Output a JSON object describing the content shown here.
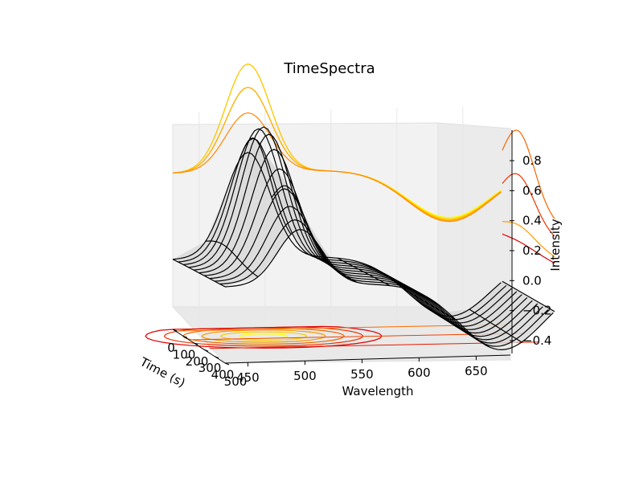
{
  "chart_data": {
    "type": "surface3d",
    "title": "TimeSpectra",
    "xlabel": "Wavelength",
    "ylabel": "Time (s)",
    "zlabel": "Intensity",
    "x_ticks": [
      "450",
      "500",
      "550",
      "600",
      "650"
    ],
    "y_ticks": [
      "0",
      "100",
      "200",
      "300",
      "400",
      "500"
    ],
    "z_ticks": [
      "0.8",
      "0.6",
      "0.4",
      "0.2",
      "0.0",
      "−0.2",
      "−0.4"
    ],
    "xlim": [
      430,
      680
    ],
    "ylim": [
      0,
      500
    ],
    "zlim": [
      -0.45,
      0.95
    ],
    "wavelengths": [
      430,
      455,
      480,
      505,
      530,
      555,
      580,
      605,
      630,
      655,
      680
    ],
    "times": [
      0,
      50,
      100,
      150,
      200,
      250,
      300,
      350,
      400,
      450,
      500
    ],
    "surface": {
      "description_of_model": "peak near 487 nm rising to ~0.9, trough near 640 nm down to ~-0.4",
      "peak_wavelength": 487,
      "peak_max": 0.9,
      "trough_wavelength": 640,
      "trough_min": -0.4
    },
    "projections": {
      "back_wall": "time slices of spectrum (yellow to orange)",
      "side_wall": "wavelength slices vs time (orange to red)",
      "floor": "contour map (yellow to red)"
    },
    "colors": {
      "surface_fill": "#d9d9d9",
      "wire": "#000000",
      "contour_low": "#ffff00",
      "contour_high": "#e00000",
      "pane": "#f2f2f2",
      "grid": "#e6e6e6"
    }
  }
}
